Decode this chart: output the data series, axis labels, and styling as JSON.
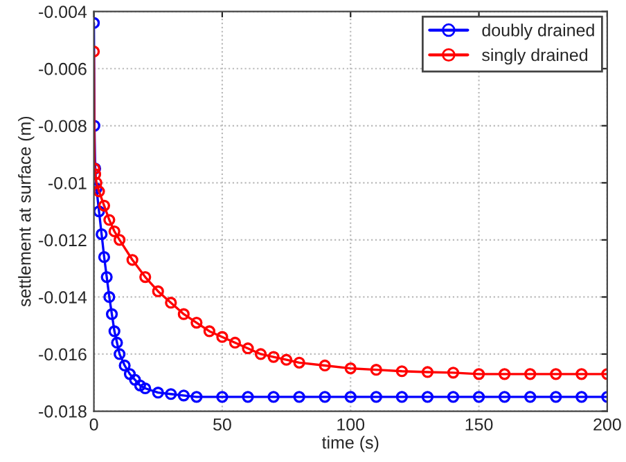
{
  "chart_data": {
    "type": "line",
    "xlabel": "time (s)",
    "ylabel": "settlement at surface (m)",
    "xlim": [
      0,
      200
    ],
    "xticks": [
      0,
      50,
      100,
      150,
      200
    ],
    "ylim": [
      -0.018,
      -0.004
    ],
    "yticks": [
      -0.018,
      -0.016,
      -0.014,
      -0.012,
      -0.01,
      -0.008,
      -0.006,
      -0.004
    ],
    "grid": true,
    "legend": "top right",
    "marker": "circle",
    "line_style": "solid",
    "series": [
      {
        "name": "doubly drained",
        "color": "#0000ff",
        "x": [
          0,
          0.2,
          0.5,
          1,
          2,
          3,
          4,
          5,
          6,
          7,
          8,
          9,
          10,
          12,
          14,
          16,
          18,
          20,
          25,
          30,
          35,
          40,
          50,
          60,
          70,
          80,
          90,
          100,
          110,
          120,
          130,
          140,
          150,
          160,
          170,
          180,
          190,
          200
        ],
        "values": [
          -0.0044,
          -0.008,
          -0.0095,
          -0.0102,
          -0.011,
          -0.0118,
          -0.0126,
          -0.0133,
          -0.014,
          -0.0146,
          -0.0152,
          -0.0156,
          -0.016,
          -0.0164,
          -0.0167,
          -0.0169,
          -0.0171,
          -0.0172,
          -0.01735,
          -0.0174,
          -0.01745,
          -0.0175,
          -0.0175,
          -0.0175,
          -0.0175,
          -0.0175,
          -0.0175,
          -0.0175,
          -0.0175,
          -0.0175,
          -0.0175,
          -0.0175,
          -0.0175,
          -0.0175,
          -0.0175,
          -0.0175,
          -0.0175,
          -0.0175
        ]
      },
      {
        "name": "singly drained",
        "color": "#ff0000",
        "x": [
          0,
          0.2,
          0.5,
          1,
          2,
          4,
          6,
          8,
          10,
          15,
          20,
          25,
          30,
          35,
          40,
          45,
          50,
          55,
          60,
          65,
          70,
          75,
          80,
          90,
          100,
          110,
          120,
          130,
          140,
          150,
          160,
          170,
          180,
          190,
          200
        ],
        "values": [
          -0.0054,
          -0.0095,
          -0.0097,
          -0.01,
          -0.0103,
          -0.0108,
          -0.0113,
          -0.0117,
          -0.012,
          -0.0127,
          -0.0133,
          -0.0138,
          -0.0142,
          -0.0146,
          -0.0149,
          -0.0152,
          -0.0154,
          -0.0156,
          -0.0158,
          -0.016,
          -0.0161,
          -0.0162,
          -0.0163,
          -0.0164,
          -0.0165,
          -0.01655,
          -0.0166,
          -0.01663,
          -0.01665,
          -0.0167,
          -0.0167,
          -0.0167,
          -0.0167,
          -0.0167,
          -0.0167
        ]
      }
    ]
  }
}
